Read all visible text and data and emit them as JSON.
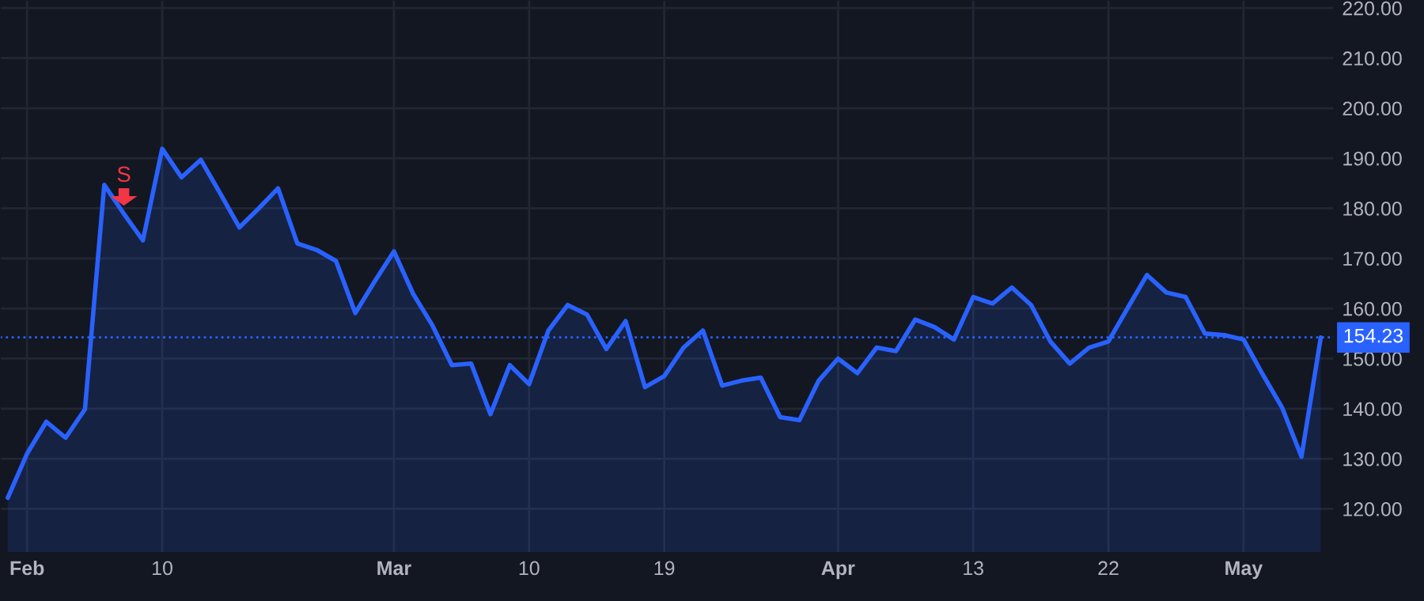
{
  "chart_data": {
    "type": "area",
    "categories": [
      null,
      "Feb",
      null,
      null,
      null,
      null,
      null,
      null,
      "10",
      null,
      null,
      null,
      null,
      null,
      null,
      null,
      null,
      null,
      null,
      null,
      "Mar",
      null,
      null,
      null,
      null,
      null,
      null,
      "10",
      null,
      null,
      null,
      null,
      null,
      null,
      "19",
      null,
      null,
      null,
      null,
      null,
      null,
      null,
      null,
      "Apr",
      null,
      null,
      null,
      null,
      null,
      null,
      "13",
      null,
      null,
      null,
      null,
      null,
      null,
      "22",
      null,
      null,
      null,
      null,
      null,
      null,
      "May",
      null,
      null,
      null,
      null
    ],
    "series": [
      {
        "color": "#2962ff",
        "values": [
          122.2,
          131,
          137.4,
          134.2,
          139.9,
          184.7,
          179,
          173.6,
          191.9,
          186.2,
          189.7,
          183,
          176.2,
          180,
          184,
          173,
          171.7,
          169.5,
          159.1,
          165.4,
          171.4,
          162.9,
          156.6,
          148.7,
          149,
          138.9,
          148.7,
          144.9,
          155.6,
          160.7,
          158.8,
          151.9,
          157.5,
          144.3,
          146.5,
          152.2,
          155.6,
          144.6,
          145.6,
          146.2,
          138.3,
          137.7,
          145.6,
          150,
          147.1,
          152.2,
          151.5,
          157.8,
          156.3,
          153.8,
          162.3,
          161,
          164.2,
          160.7,
          153.4,
          149,
          152.2,
          153.4,
          160.1,
          166.7,
          163.2,
          162.3,
          155,
          154.7,
          153.8,
          146.8,
          140.2,
          130.4,
          154.2
        ]
      }
    ],
    "ylim": [
      111.2,
      221.6
    ],
    "yticks": [
      {
        "value": 120,
        "label": "120.00"
      },
      {
        "value": 130,
        "label": "130.00"
      },
      {
        "value": 140,
        "label": "140.00"
      },
      {
        "value": 150,
        "label": "150.00"
      },
      {
        "value": 160,
        "label": "160.00"
      },
      {
        "value": 170,
        "label": "170.00"
      },
      {
        "value": 180,
        "label": "180.00"
      },
      {
        "value": 190,
        "label": "190.00"
      },
      {
        "value": 200,
        "label": "200.00"
      },
      {
        "value": 210,
        "label": "210.00"
      },
      {
        "value": 220,
        "label": "220.00"
      }
    ],
    "ref_lines": [
      {
        "axis": "y",
        "value": 154.23,
        "label": "154.23",
        "color": "#2962ff",
        "line_style": "dotted"
      }
    ],
    "annotations": [
      "S"
    ],
    "grid": true,
    "line_style": "solid",
    "marker": "none"
  }
}
